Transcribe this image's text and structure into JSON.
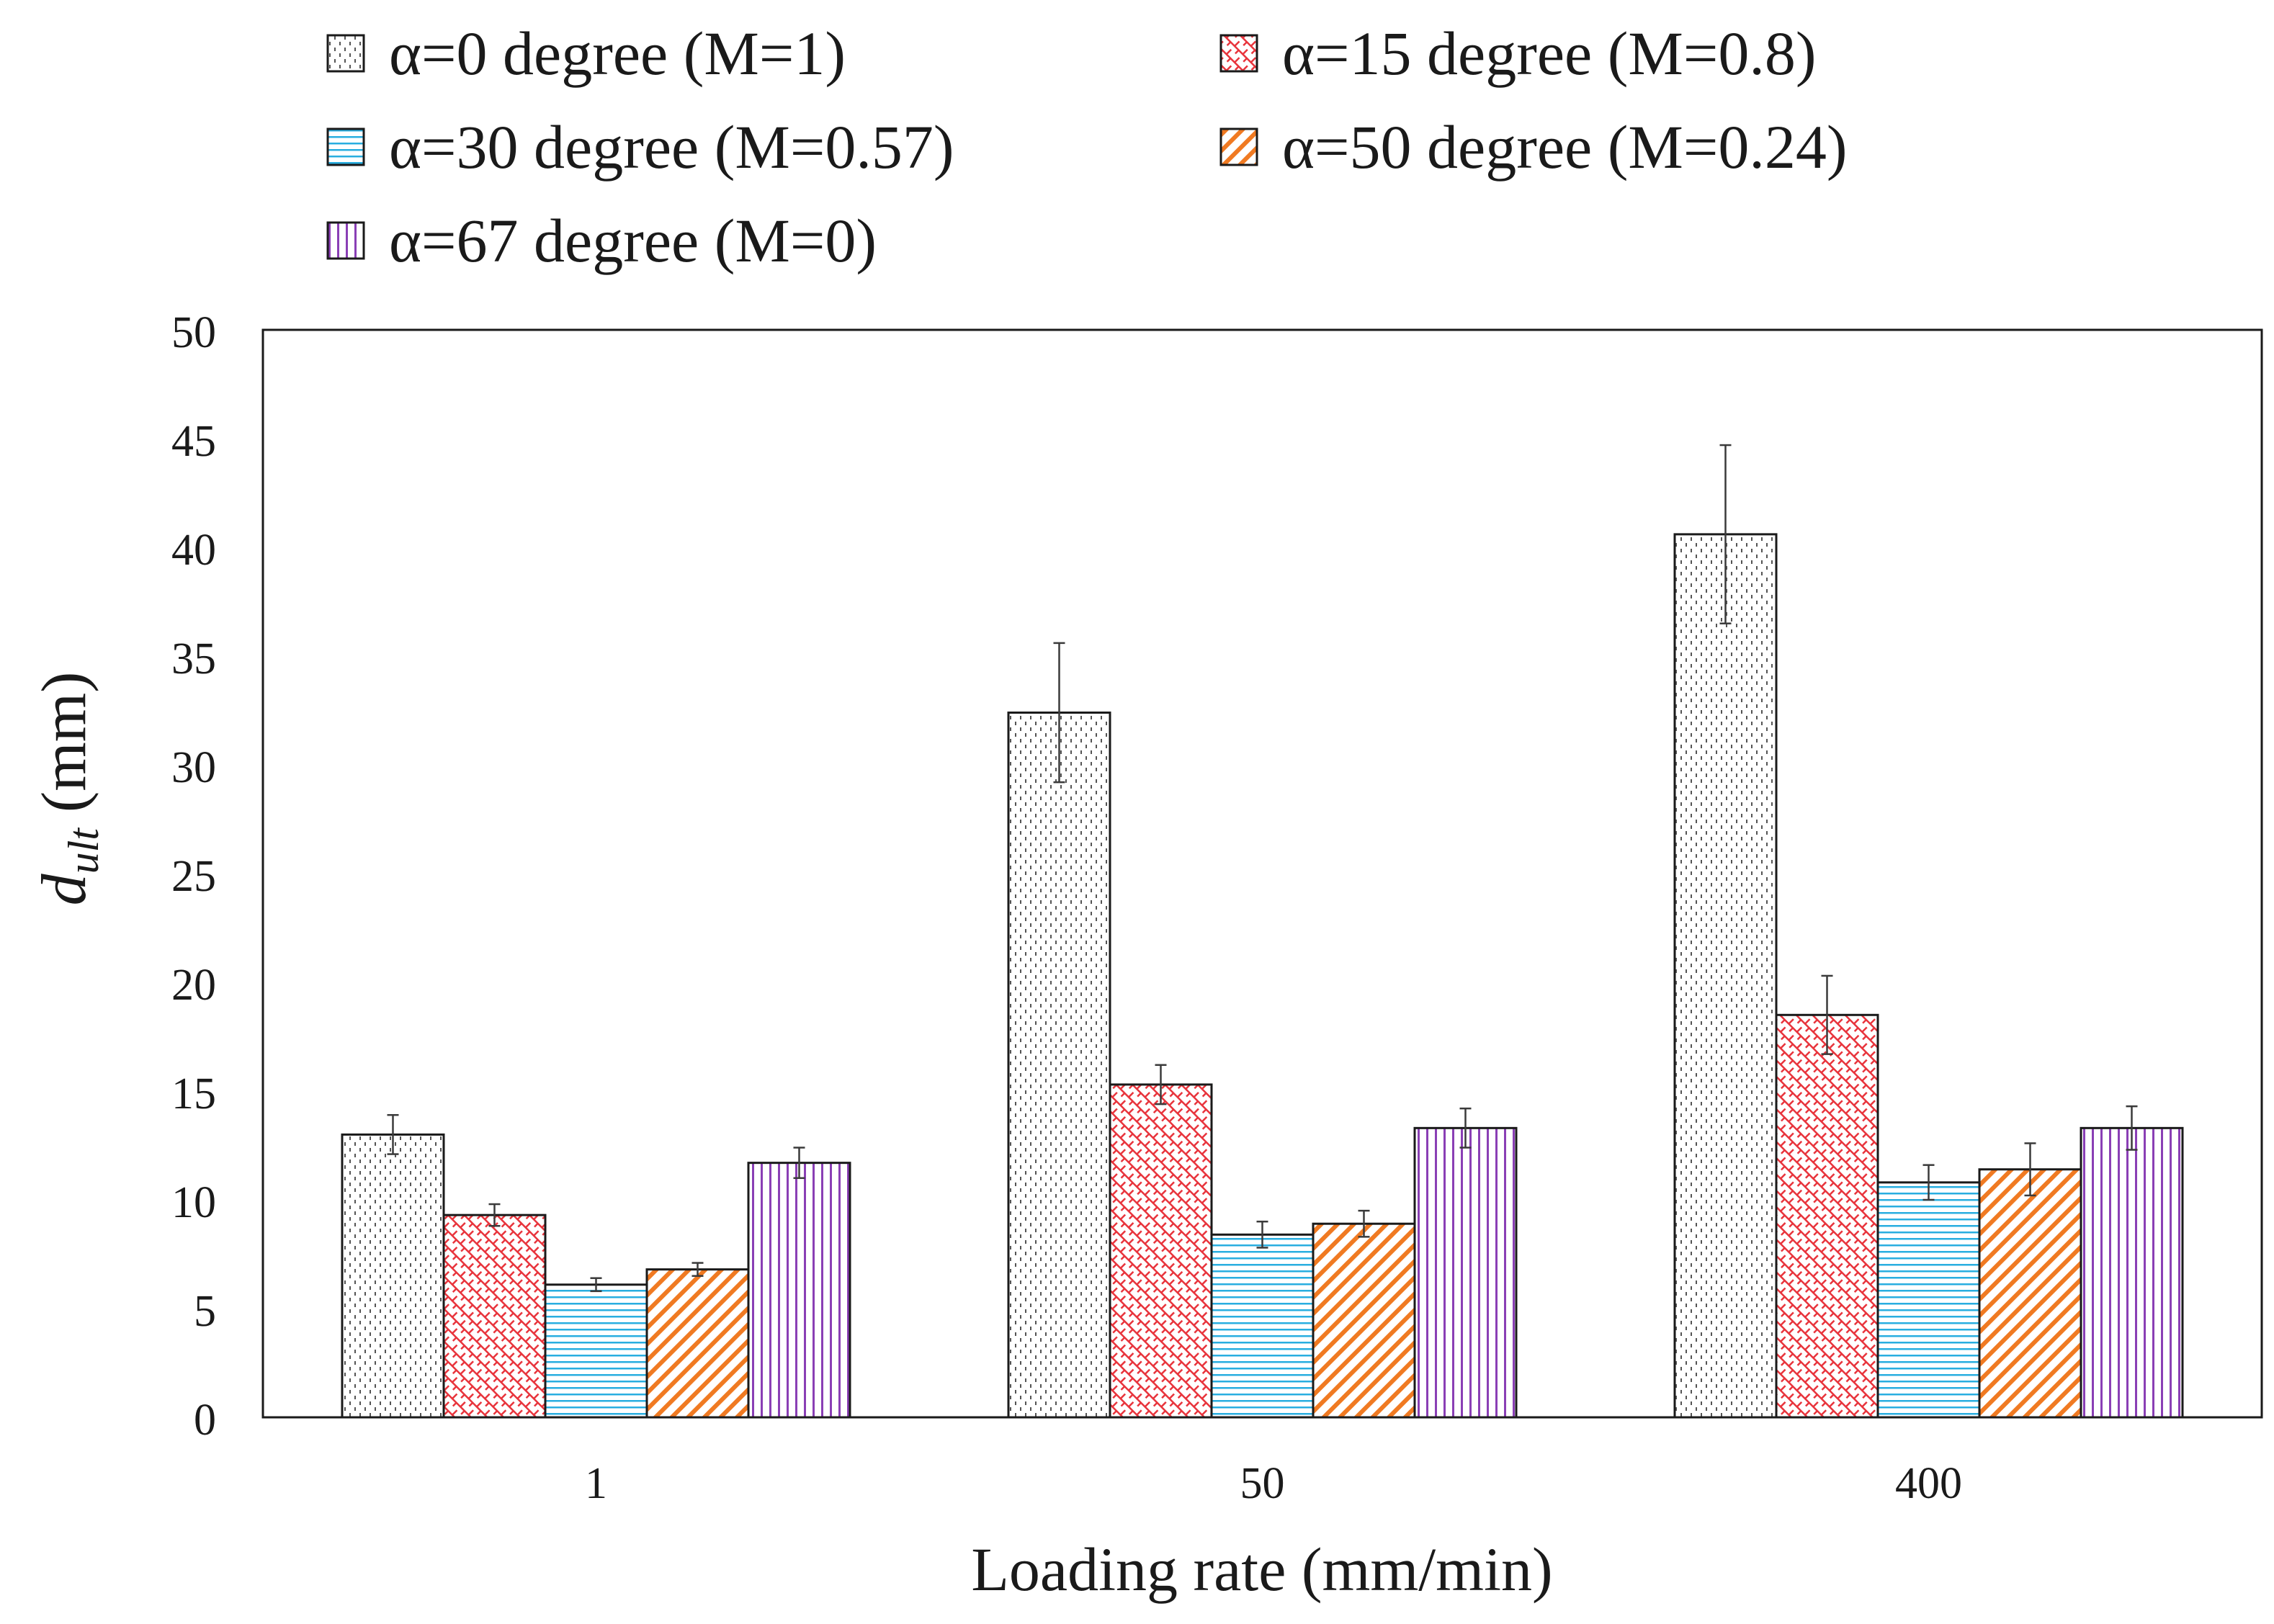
{
  "chart_data": {
    "type": "bar",
    "title": "",
    "xlabel": "Loading rate (mm/min)",
    "ylabel_main": "d",
    "ylabel_sub": "ult",
    "ylabel_unit": " (mm)",
    "categories": [
      "1",
      "50",
      "400"
    ],
    "ylim": [
      0,
      50
    ],
    "yticks": [
      0,
      5,
      10,
      15,
      20,
      25,
      30,
      35,
      40,
      45,
      50
    ],
    "grid": false,
    "legend_position": "top",
    "series": [
      {
        "name": "α=0 degree (M=1)",
        "pattern": "dots",
        "color": "#555555",
        "values": [
          13.0,
          32.4,
          40.6
        ],
        "errors": [
          0.9,
          3.2,
          4.1
        ]
      },
      {
        "name": "α=15 degree (M=0.8)",
        "pattern": "crosshatch",
        "color": "#e8343c",
        "values": [
          9.3,
          15.3,
          18.5
        ],
        "errors": [
          0.5,
          0.9,
          1.8
        ]
      },
      {
        "name": "α=30 degree (M=0.57)",
        "pattern": "horizontal",
        "color": "#29aee0",
        "values": [
          6.1,
          8.4,
          10.8
        ],
        "errors": [
          0.3,
          0.6,
          0.8
        ]
      },
      {
        "name": "α=50 degree (M=0.24)",
        "pattern": "diagonal",
        "color": "#f07a22",
        "values": [
          6.8,
          8.9,
          11.4
        ],
        "errors": [
          0.3,
          0.6,
          1.2
        ]
      },
      {
        "name": "α=67 degree (M=0)",
        "pattern": "vertical",
        "color": "#8a3fb5",
        "values": [
          11.7,
          13.3,
          13.3
        ],
        "errors": [
          0.7,
          0.9,
          1.0
        ]
      }
    ]
  }
}
